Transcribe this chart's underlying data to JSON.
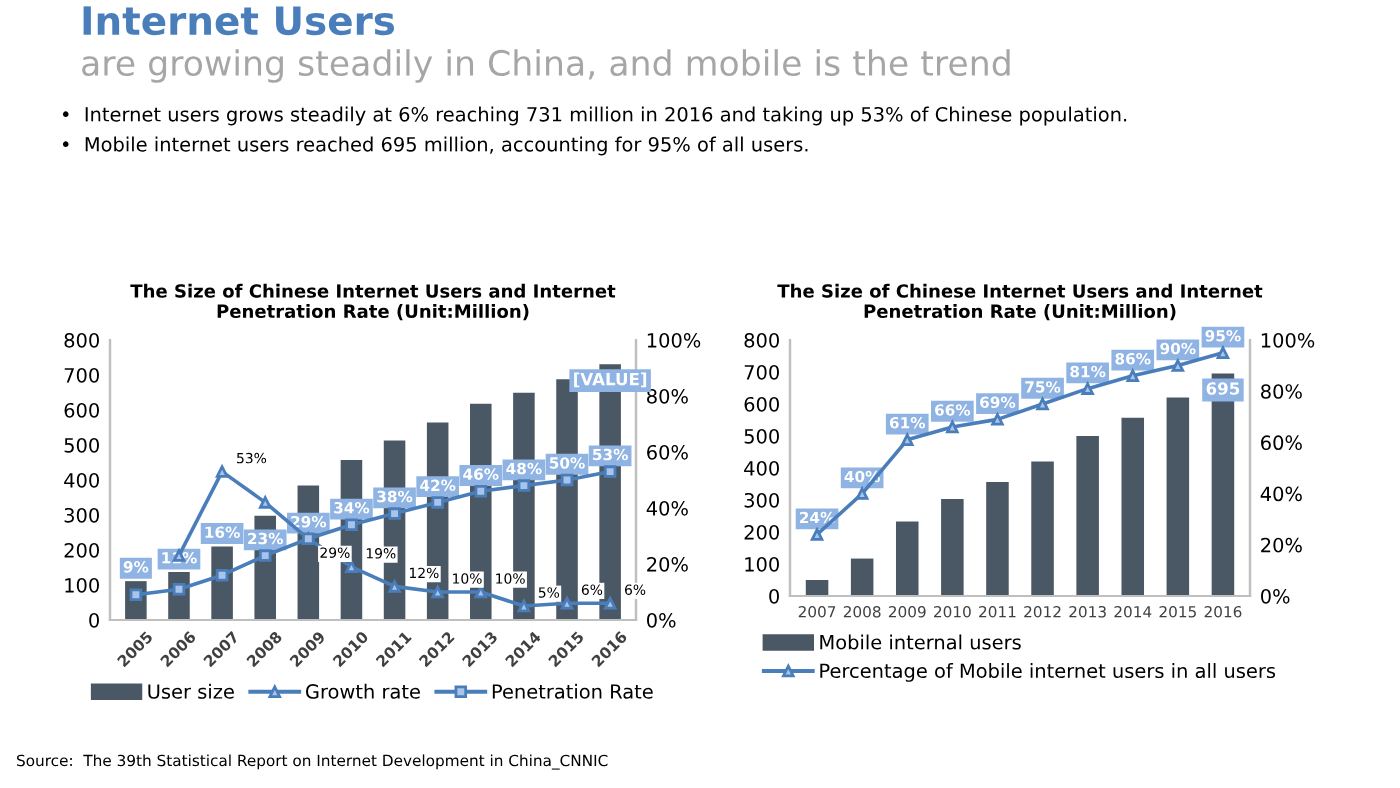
{
  "chart_data": [
    {
      "type": "other",
      "title": "Internet Users",
      "subtitle": "are growing steadily in China, and mobile is the trend",
      "annotations": [
        "•  Internet users grows steadily at 6% reaching 731 million in 2016 and taking up 53% of Chinese population.",
        "•  Mobile internet users reached 695 million, accounting for 95% of all users.",
        "Source:  The 39th Statistical Report on Internet Development in China_CNNIC"
      ]
    },
    {
      "type": "bar",
      "title": "The Size of Chinese Internet Users and Internet Penetration Rate (Unit:Million)",
      "categories": [
        "2005",
        "2006",
        "2007",
        "2008",
        "2009",
        "2010",
        "2011",
        "2012",
        "2013",
        "2014",
        "2015",
        "2016"
      ],
      "series": [
        {
          "name": "User size",
          "type": "bar",
          "color": "#4a5866",
          "values": [
            111,
            137,
            210,
            298,
            384,
            457,
            513,
            564,
            618,
            649,
            688,
            731
          ],
          "value_labels": [
            null,
            null,
            null,
            null,
            null,
            null,
            null,
            null,
            null,
            null,
            null,
            "[VALUE]"
          ]
        },
        {
          "name": "Growth rate",
          "type": "line",
          "axis": "y2",
          "marker": "triangle",
          "color": "#4a7ebb",
          "values": [
            null,
            23,
            53,
            42,
            29,
            19,
            12,
            10,
            10,
            5,
            6,
            6
          ],
          "value_labels": [
            null,
            null,
            "53%",
            null,
            "29%",
            "19%",
            "12%",
            "10%",
            "10%",
            "5%",
            "6%",
            "6%"
          ]
        },
        {
          "name": "Penetration Rate",
          "type": "line",
          "axis": "y2",
          "marker": "square",
          "color": "#4a7ebb",
          "values": [
            9,
            11,
            16,
            23,
            29,
            34,
            38,
            42,
            46,
            48,
            50,
            53
          ],
          "value_labels": [
            "9%",
            "11%",
            "16%",
            "23%",
            "29%",
            "34%",
            "38%",
            "42%",
            "46%",
            "48%",
            "50%",
            "53%"
          ]
        }
      ],
      "ylim": [
        0,
        800
      ],
      "yticks": [
        0,
        100,
        200,
        300,
        400,
        500,
        600,
        700,
        800
      ],
      "y2lim": [
        0,
        100
      ],
      "y2ticks": [
        {
          "value": 0,
          "label": "0%"
        },
        {
          "value": 20,
          "label": "20%"
        },
        {
          "value": 40,
          "label": "40%"
        },
        {
          "value": 60,
          "label": "60%"
        },
        {
          "value": 80,
          "label": "80%"
        },
        {
          "value": 100,
          "label": "100%"
        }
      ],
      "grid": false,
      "legend": "bottom"
    },
    {
      "type": "bar",
      "title": "The Size of Chinese Internet Users and Internet Penetration Rate (Unit:Million)",
      "categories": [
        "2007",
        "2008",
        "2009",
        "2010",
        "2011",
        "2012",
        "2013",
        "2014",
        "2015",
        "2016"
      ],
      "series": [
        {
          "name": "Mobile internal users",
          "type": "bar",
          "color": "#4a5866",
          "values": [
            50,
            117,
            233,
            303,
            356,
            420,
            500,
            557,
            620,
            695
          ],
          "value_labels": [
            null,
            null,
            null,
            null,
            null,
            null,
            null,
            null,
            null,
            "695"
          ]
        },
        {
          "name": "Percentage of Mobile internet users in all users",
          "type": "line",
          "axis": "y2",
          "marker": "triangle",
          "color": "#4a7ebb",
          "values": [
            24,
            40,
            61,
            66,
            69,
            75,
            81,
            86,
            90,
            95
          ],
          "value_labels": [
            "24%",
            "40%",
            "61%",
            "66%",
            "69%",
            "75%",
            "81%",
            "86%",
            "90%",
            "95%"
          ]
        }
      ],
      "ylim": [
        0,
        800
      ],
      "yticks": [
        0,
        100,
        200,
        300,
        400,
        500,
        600,
        700,
        800
      ],
      "y2lim": [
        0,
        100
      ],
      "y2ticks": [
        {
          "value": 0,
          "label": "0%"
        },
        {
          "value": 20,
          "label": "20%"
        },
        {
          "value": 40,
          "label": "40%"
        },
        {
          "value": 60,
          "label": "60%"
        },
        {
          "value": 80,
          "label": "80%"
        },
        {
          "value": 100,
          "label": "100%"
        }
      ],
      "grid": false,
      "legend": "bottom"
    }
  ]
}
